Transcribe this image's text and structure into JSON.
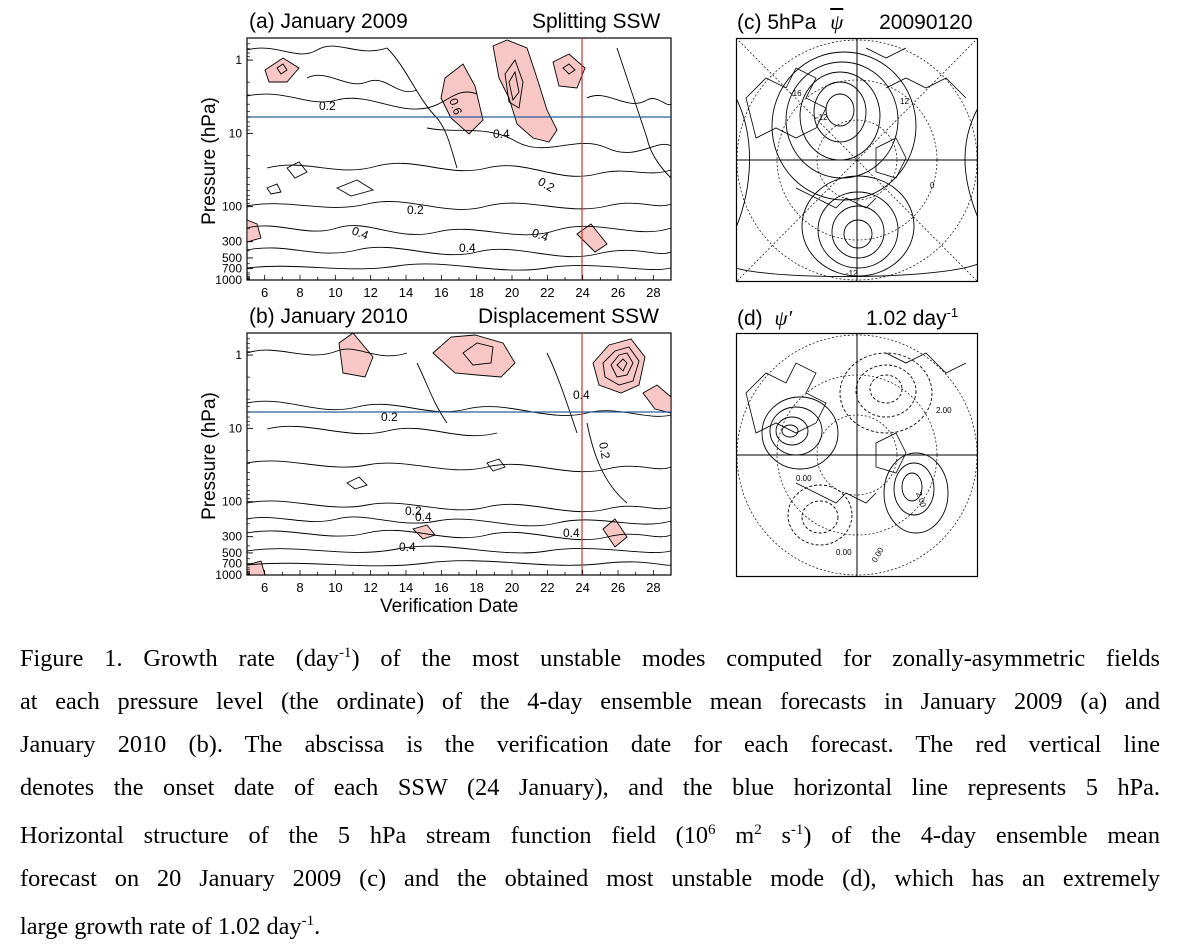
{
  "figure": {
    "panel_a": {
      "title_left": "(a) January 2009",
      "title_right": "Splitting SSW"
    },
    "panel_b": {
      "title_left": "(b) January 2010",
      "title_right": "Displacement SSW"
    },
    "panel_c": {
      "title_prefix": "(c) 5hPa",
      "title_symbol": "ψ",
      "title_date": "20090120"
    },
    "panel_d": {
      "title_prefix": "(d)",
      "title_symbol": "ψ′",
      "title_rate": "1.02 day",
      "title_rate_sup": "-1"
    },
    "ylabel": "Pressure (hPa)",
    "xlabel": "Verification Date",
    "y_ticks": [
      "1",
      "10",
      "100",
      "300",
      "500",
      "700",
      "1000"
    ],
    "x_ticks": [
      "6",
      "8",
      "10",
      "12",
      "14",
      "16",
      "18",
      "20",
      "22",
      "24",
      "26",
      "28"
    ],
    "contour_labels_a": [
      "0.2",
      "0.6",
      "0.4",
      "0.2",
      "0.2",
      "0.4",
      "0.4",
      "0.4"
    ],
    "contour_labels_b": [
      "0.4",
      "0.2",
      "0.2",
      "0.4",
      "0.2",
      "0.4",
      "0.4"
    ],
    "map_labels_c": [
      "-16",
      "-12",
      "12",
      "-12",
      "0"
    ],
    "map_labels_d": [
      "2.00",
      "2.00",
      "0.00",
      "0.00",
      "0.00"
    ]
  },
  "chart_data": [
    {
      "type": "heatmap",
      "title": "(a) January 2009",
      "subtitle": "Splitting SSW",
      "ylabel": "Pressure (hPa)",
      "xlabel": "",
      "x_range": [
        5,
        29
      ],
      "y_range": [
        1000,
        0.5
      ],
      "y_scale": "log",
      "contour_interval": 0.2,
      "shaded_above": 0.6,
      "reference_lines": {
        "vertical_date": 24,
        "horizontal_hPa": 5
      }
    },
    {
      "type": "heatmap",
      "title": "(b) January 2010",
      "subtitle": "Displacement SSW",
      "ylabel": "Pressure (hPa)",
      "xlabel": "Verification Date",
      "x_range": [
        5,
        29
      ],
      "y_range": [
        1000,
        0.5
      ],
      "y_scale": "log",
      "contour_interval": 0.2,
      "shaded_above": 0.6,
      "reference_lines": {
        "vertical_date": 24,
        "horizontal_hPa": 5
      }
    }
  ],
  "caption": {
    "line1": "Figure 1. Growth rate (day",
    "line1_sup": "-1",
    "line1_rest": ") of the most unstable modes computed for zonally-asymmetric fields",
    "line2": "at each pressure level (the ordinate) of the 4-day ensemble mean forecasts in January 2009 (a) and",
    "line3": "January 2010 (b). The abscissa is the verification date for each forecast. The red vertical line",
    "line4": "denotes the onset date of each SSW (24 January), and the blue horizontal line represents 5 hPa.",
    "line5_a": "Horizontal structure of the 5 hPa stream function field (10",
    "line5_sup1": "6",
    "line5_b": " m",
    "line5_sup2": "2",
    "line5_c": " s",
    "line5_sup3": "-1",
    "line5_d": ") of the 4-day ensemble mean",
    "line6": "forecast on 20 January 2009 (c) and the obtained most unstable mode (d), which has an extremely",
    "line7_a": "large growth rate of 1.02 day",
    "line7_sup": "-1",
    "line7_b": "."
  },
  "colors": {
    "shade": "#f6c7c5",
    "shade_dark": "#eea7a4",
    "onset_line": "#d0342c",
    "level_line": "#2a5d9c"
  }
}
